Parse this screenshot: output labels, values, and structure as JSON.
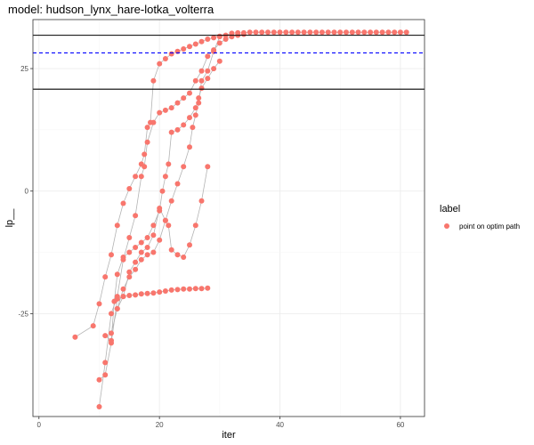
{
  "chart_data": {
    "type": "scatter",
    "title": "model: hudson_lynx_hare-lotka_volterra",
    "xlabel": "iter",
    "ylabel": "lp__",
    "xlim": [
      -1,
      64
    ],
    "ylim": [
      -46,
      35
    ],
    "xticks": [
      0,
      20,
      40,
      60
    ],
    "yticks": [
      -25,
      0,
      25
    ],
    "grid": true,
    "legend": {
      "title": "label",
      "placement": "right",
      "entries": [
        "point on optim path"
      ]
    },
    "colors": {
      "point": "#F8766D",
      "path": "#b3b3b3",
      "hline_solid": "#000000",
      "hline_dashed": "#0000ff",
      "panel_border": "#333333",
      "grid_major": "#ebebeb"
    },
    "hlines": [
      {
        "y": 31.8,
        "style": "solid"
      },
      {
        "y": 28.2,
        "style": "dashed"
      },
      {
        "y": 20.8,
        "style": "solid"
      }
    ],
    "series": [
      {
        "points": [
          [
            6,
            -29.8
          ],
          [
            9,
            -27.5
          ],
          [
            10,
            -23
          ],
          [
            11,
            -17.5
          ],
          [
            12,
            -13
          ],
          [
            13,
            -7
          ],
          [
            14,
            -2.5
          ],
          [
            15,
            0.5
          ],
          [
            16,
            3
          ],
          [
            17,
            5.5
          ],
          [
            17.5,
            7.5
          ],
          [
            18,
            13
          ],
          [
            18.5,
            14
          ],
          [
            19,
            22.5
          ],
          [
            20,
            26
          ],
          [
            21,
            27
          ],
          [
            22,
            28
          ],
          [
            23,
            28.5
          ],
          [
            24,
            29
          ],
          [
            25,
            29.5
          ],
          [
            26,
            30
          ],
          [
            27,
            30.5
          ],
          [
            28,
            31
          ],
          [
            29,
            31.3
          ],
          [
            30,
            31.6
          ],
          [
            31,
            31.8
          ],
          [
            32,
            32.2
          ],
          [
            33,
            32.3
          ],
          [
            34,
            32.3
          ],
          [
            35,
            32.4
          ],
          [
            36,
            32.4
          ],
          [
            37,
            32.4
          ],
          [
            38,
            32.4
          ],
          [
            39,
            32.4
          ],
          [
            40,
            32.4
          ],
          [
            41,
            32.4
          ],
          [
            42,
            32.4
          ],
          [
            43,
            32.4
          ],
          [
            44,
            32.4
          ],
          [
            45,
            32.4
          ],
          [
            46,
            32.4
          ],
          [
            47,
            32.4
          ],
          [
            48,
            32.4
          ],
          [
            49,
            32.4
          ],
          [
            50,
            32.4
          ],
          [
            51,
            32.4
          ],
          [
            52,
            32.4
          ],
          [
            53,
            32.4
          ],
          [
            54,
            32.4
          ],
          [
            55,
            32.4
          ],
          [
            56,
            32.4
          ],
          [
            57,
            32.4
          ],
          [
            58,
            32.4
          ],
          [
            59,
            32.4
          ],
          [
            60,
            32.4
          ],
          [
            61,
            32.4
          ]
        ]
      },
      {
        "points": [
          [
            10,
            -44
          ],
          [
            11,
            -35
          ],
          [
            12,
            -25
          ],
          [
            13,
            -21.5
          ],
          [
            14,
            -14
          ],
          [
            15,
            -9.5
          ],
          [
            16,
            -5
          ],
          [
            17,
            3
          ],
          [
            17.5,
            5
          ],
          [
            18,
            10
          ],
          [
            19,
            14
          ],
          [
            20,
            16
          ],
          [
            21,
            16.5
          ],
          [
            22,
            17
          ],
          [
            23,
            18
          ],
          [
            24,
            19
          ],
          [
            25,
            20
          ],
          [
            26,
            22.5
          ],
          [
            27,
            24.5
          ],
          [
            28,
            27.5
          ],
          [
            29,
            28.8
          ],
          [
            30,
            30.2
          ],
          [
            31,
            31
          ],
          [
            32,
            31.5
          ],
          [
            33,
            31.8
          ],
          [
            34,
            32
          ]
        ]
      },
      {
        "points": [
          [
            10,
            -38.5
          ],
          [
            11,
            -37.5
          ],
          [
            12,
            -31
          ],
          [
            13,
            -22
          ],
          [
            14,
            -21.5
          ],
          [
            15,
            -21.3
          ],
          [
            16,
            -21.2
          ],
          [
            17,
            -21
          ],
          [
            18,
            -20.9
          ],
          [
            19,
            -20.8
          ],
          [
            20,
            -20.6
          ],
          [
            21,
            -20.4
          ],
          [
            22,
            -20.2
          ],
          [
            23,
            -20.1
          ],
          [
            24,
            -20
          ],
          [
            25,
            -20
          ],
          [
            26,
            -19.9
          ],
          [
            27,
            -19.9
          ],
          [
            28,
            -19.8
          ]
        ]
      },
      {
        "points": [
          [
            11,
            -29.5
          ],
          [
            12,
            -30.5
          ],
          [
            12.5,
            -22.5
          ],
          [
            13,
            -17
          ],
          [
            14,
            -13.5
          ],
          [
            15,
            -12.5
          ],
          [
            16,
            -11.5
          ],
          [
            17,
            -10.5
          ],
          [
            18,
            -9.5
          ],
          [
            19,
            -7
          ],
          [
            20,
            -4
          ],
          [
            20.5,
            0
          ],
          [
            21,
            3
          ],
          [
            21.5,
            5.5
          ],
          [
            22,
            12
          ],
          [
            23,
            12.5
          ],
          [
            24,
            13.5
          ],
          [
            25,
            15
          ],
          [
            26,
            17
          ],
          [
            26.5,
            19
          ],
          [
            27,
            21
          ],
          [
            28,
            23
          ],
          [
            29,
            25
          ],
          [
            30,
            26.5
          ]
        ]
      },
      {
        "points": [
          [
            12,
            -29
          ],
          [
            13,
            -24
          ],
          [
            14,
            -20
          ],
          [
            15,
            -17.5
          ],
          [
            16,
            -16
          ],
          [
            17,
            -14
          ],
          [
            18,
            -13
          ],
          [
            19,
            -12.5
          ],
          [
            20,
            -10
          ],
          [
            21,
            -6
          ],
          [
            22,
            -2
          ],
          [
            23,
            1.5
          ],
          [
            24,
            5
          ],
          [
            25,
            9
          ],
          [
            25.5,
            13
          ],
          [
            26,
            15.5
          ],
          [
            26.5,
            18
          ],
          [
            27,
            22.5
          ],
          [
            28,
            24.5
          ],
          [
            29,
            28.5
          ],
          [
            30,
            31.5
          ]
        ]
      },
      {
        "points": [
          [
            13,
            -24
          ],
          [
            14,
            -21.5
          ],
          [
            15,
            -16.5
          ],
          [
            16,
            -14.5
          ],
          [
            17,
            -12.5
          ],
          [
            18,
            -11.5
          ],
          [
            19,
            -9
          ],
          [
            20,
            -3.5
          ],
          [
            21,
            -6
          ],
          [
            21.5,
            -7
          ],
          [
            22,
            -12
          ],
          [
            23,
            -13
          ],
          [
            24,
            -13.5
          ],
          [
            25,
            -11
          ],
          [
            26,
            -7
          ],
          [
            27,
            -2
          ],
          [
            28,
            5
          ]
        ]
      }
    ]
  }
}
